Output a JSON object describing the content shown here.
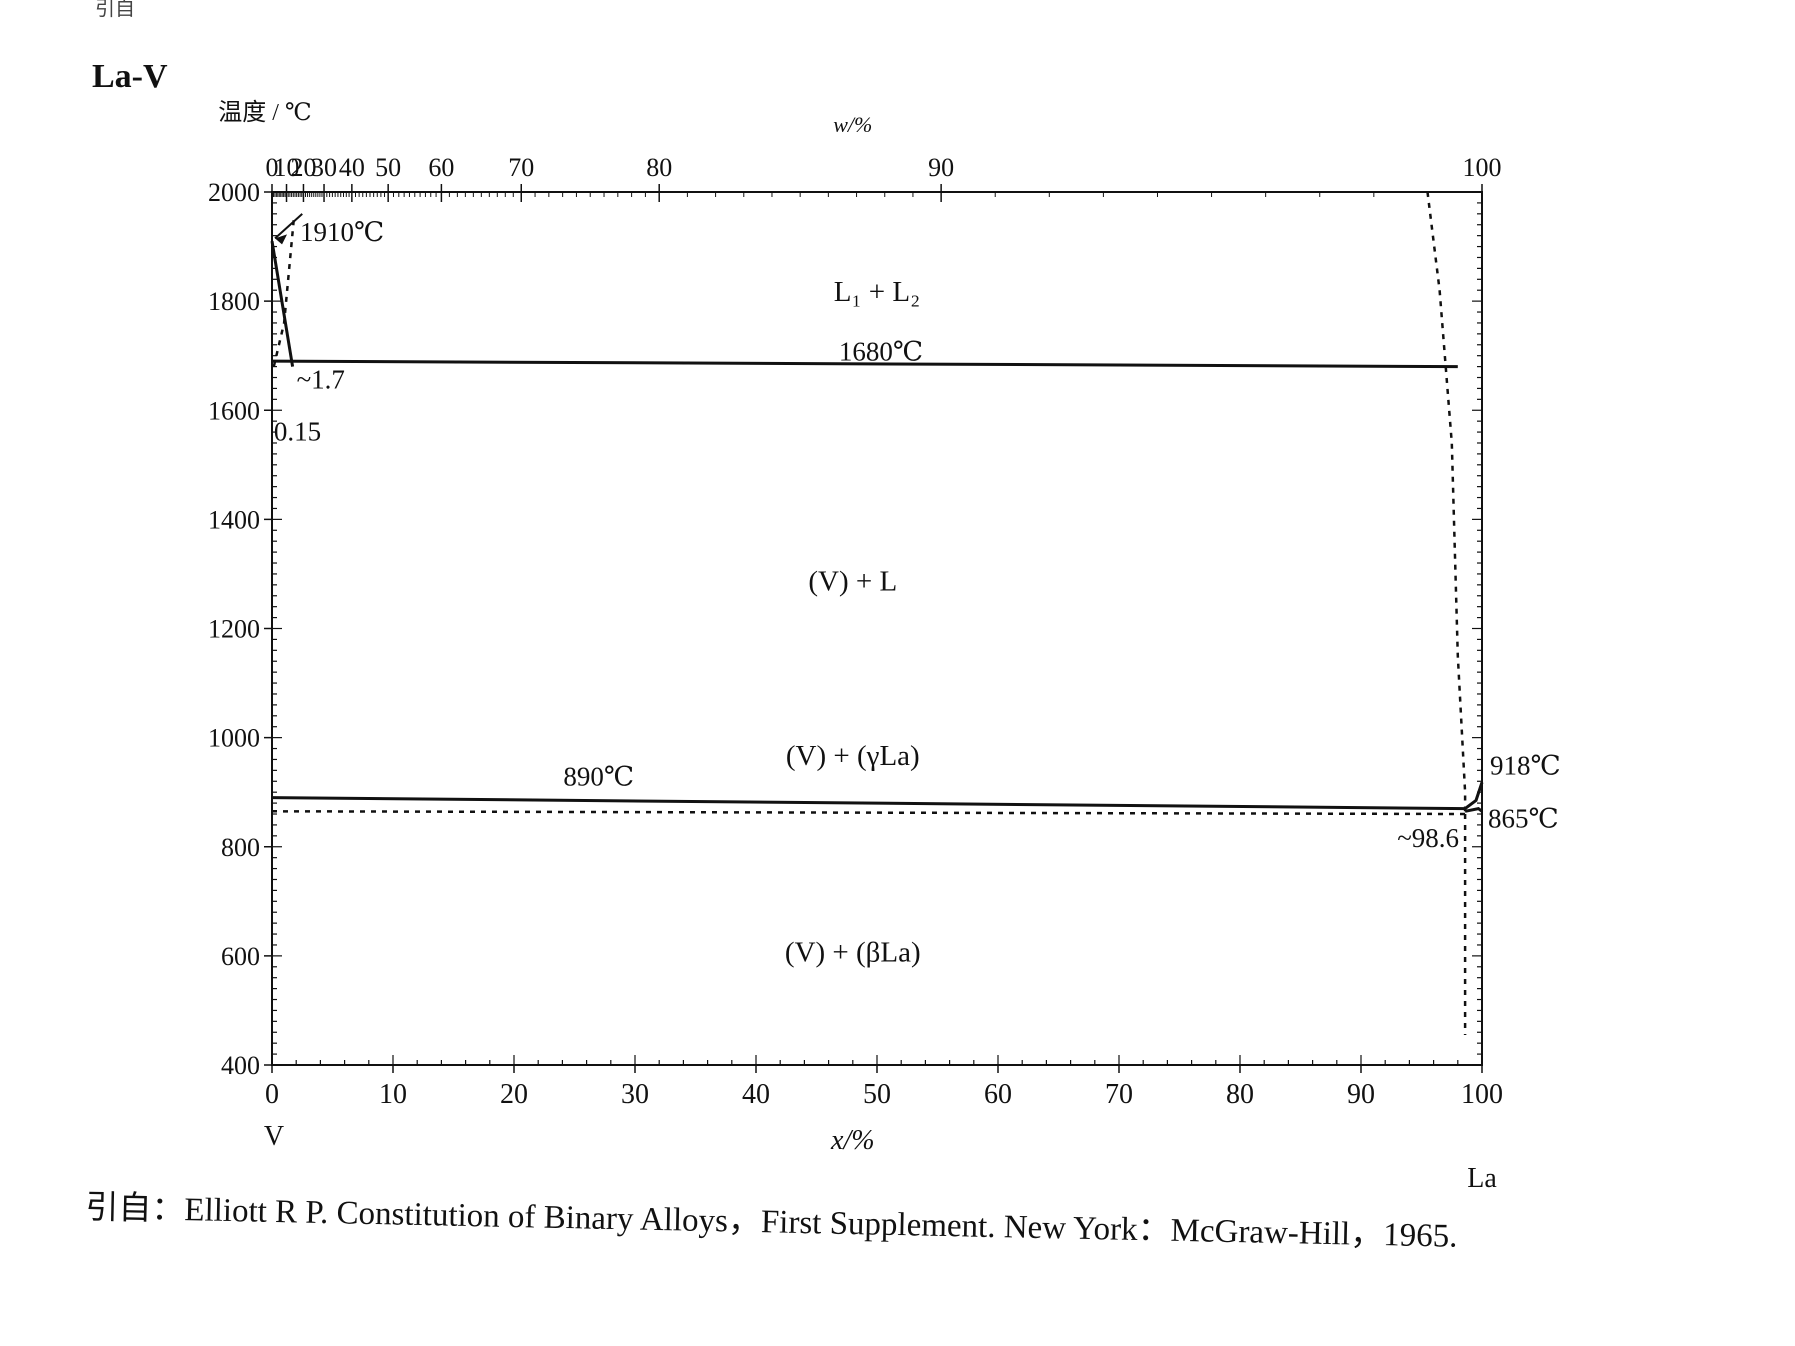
{
  "corner_mark": "引自",
  "system_title": "La-V",
  "source": {
    "prefix": "引自：",
    "text": "Elliott R P.  Constitution of Binary Alloys，First Supplement. New York：McGraw-Hill，1965."
  },
  "chart_data": {
    "type": "line",
    "title": "La-V",
    "ylabel": "温度 / ℃",
    "xlabel_bottom": "x/%",
    "xlabel_top": "w/%",
    "xlim": [
      0,
      100
    ],
    "ylim": [
      400,
      2000
    ],
    "x_left_element": "V",
    "x_right_element": "La",
    "y_ticks": [
      "2000",
      "1800",
      "1600",
      "1400",
      "1200",
      "1000",
      "800",
      "600",
      "400"
    ],
    "x_ticks_bottom": [
      "0",
      "10",
      "20",
      "30",
      "40",
      "50",
      "60",
      "70",
      "80",
      "90",
      "100"
    ],
    "x_ticks_top": [
      "0",
      "10",
      "20",
      "30",
      "40",
      "50",
      "60",
      "70",
      "80",
      "90",
      "100"
    ],
    "x_ticks_top_positions_at": [
      0,
      1.2,
      2.6,
      4.3,
      6.6,
      9.6,
      14.0,
      20.6,
      32.0,
      55.3,
      100
    ],
    "series": [
      {
        "style": "solid",
        "points": [
          [
            0,
            1910
          ],
          [
            1.7,
            1680
          ]
        ]
      },
      {
        "style": "dotted",
        "points": [
          [
            0.15,
            1680
          ],
          [
            1.0,
            1760
          ],
          [
            1.8,
            1950
          ]
        ]
      },
      {
        "style": "solid",
        "points": [
          [
            0,
            1690
          ],
          [
            98.0,
            1680
          ]
        ]
      },
      {
        "style": "dotted",
        "points": [
          [
            95.5,
            2000
          ],
          [
            96.5,
            1820
          ],
          [
            97.0,
            1680
          ],
          [
            97.5,
            1540
          ],
          [
            98.0,
            1150
          ],
          [
            98.6,
            900
          ],
          [
            98.6,
            865
          ]
        ]
      },
      {
        "style": "solid",
        "points": [
          [
            0,
            890
          ],
          [
            98.6,
            870
          ]
        ]
      },
      {
        "style": "dotted",
        "points": [
          [
            0,
            865
          ],
          [
            98.6,
            860
          ]
        ]
      },
      {
        "style": "solid",
        "points": [
          [
            98.6,
            870
          ],
          [
            99.5,
            885
          ],
          [
            100,
            918
          ]
        ]
      },
      {
        "style": "solid",
        "points": [
          [
            98.6,
            865
          ],
          [
            99.7,
            870
          ],
          [
            100,
            865
          ]
        ]
      },
      {
        "style": "dotted",
        "points": [
          [
            98.6,
            860
          ],
          [
            98.6,
            600
          ],
          [
            98.6,
            455
          ]
        ]
      }
    ],
    "region_labels": [
      {
        "text": "L₁ + L₂",
        "x": 50,
        "y": 1800
      },
      {
        "text": "(V) + L",
        "x": 48,
        "y": 1270
      },
      {
        "text": "(V) + (γLa)",
        "x": 48,
        "y": 950
      },
      {
        "text": "(V) + (βLa)",
        "x": 48,
        "y": 590
      }
    ],
    "annotations": [
      {
        "text": "1910℃",
        "x": 0,
        "y": 1910
      },
      {
        "text": "~1.7",
        "x": 1.7,
        "y": 1680
      },
      {
        "text": "0.15",
        "x": 0.15,
        "y": 1600
      },
      {
        "text": "1680℃",
        "x": 50,
        "y": 1680
      },
      {
        "text": "890℃",
        "x": 27,
        "y": 890
      },
      {
        "text": "918℃",
        "x": 100,
        "y": 918
      },
      {
        "text": "865℃",
        "x": 100,
        "y": 865
      },
      {
        "text": "~98.6",
        "x": 98.6,
        "y": 840
      }
    ]
  }
}
